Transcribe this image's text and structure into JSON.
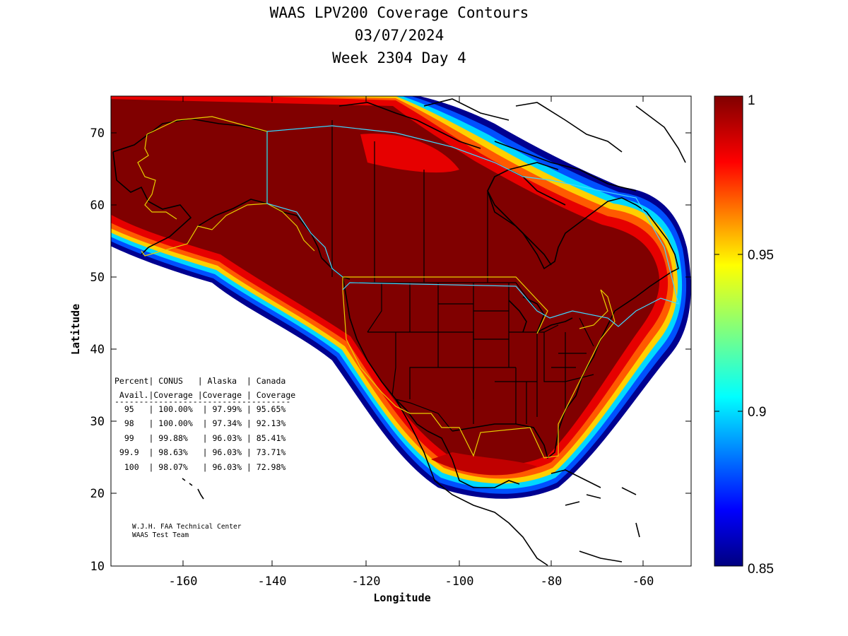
{
  "title": {
    "line1": "WAAS LPV200 Coverage Contours",
    "line2": "03/07/2024",
    "line3": "Week 2304 Day 4"
  },
  "map": {
    "xlabel": "Longitude",
    "ylabel": "Latitude",
    "x_ticks": [
      "-160",
      "-140",
      "-120",
      "-100",
      "-80",
      "-60"
    ],
    "y_ticks": [
      "70",
      "60",
      "50",
      "40",
      "30",
      "20",
      "10"
    ],
    "xlim": [
      -174,
      -50
    ],
    "ylim": [
      10,
      75
    ]
  },
  "colorbar": {
    "ticks": [
      "1",
      "0.95",
      "0.9",
      "0.85"
    ],
    "range": [
      0.85,
      1.0
    ],
    "colormap": "jet"
  },
  "coverage_table": {
    "header1": "Percent| CONUS   | Alaska  | Canada",
    "header2": " Avail.|Coverage |Coverage | Coverage",
    "separator": "------------------------------------",
    "rows": [
      "  95   | 100.00%  | 97.99% | 95.65%",
      "  98   | 100.00%  | 97.34% | 92.13%",
      "  99   | 99.88%   | 96.03% | 85.41%",
      " 99.9  | 98.63%   | 96.03% | 73.71%",
      "  100  | 98.07%   | 96.03% | 72.98%"
    ]
  },
  "credit": {
    "line1": "W.J.H. FAA Technical Center",
    "line2": "WAAS Test Team"
  },
  "colors": {
    "dark_red": "#800000",
    "red": "#e00000",
    "orange": "#ff6a00",
    "yellow": "#ffe000",
    "cyan": "#00e0ff",
    "blue": "#0030ff",
    "navy": "#000080",
    "region_outline": "#e8d000"
  }
}
